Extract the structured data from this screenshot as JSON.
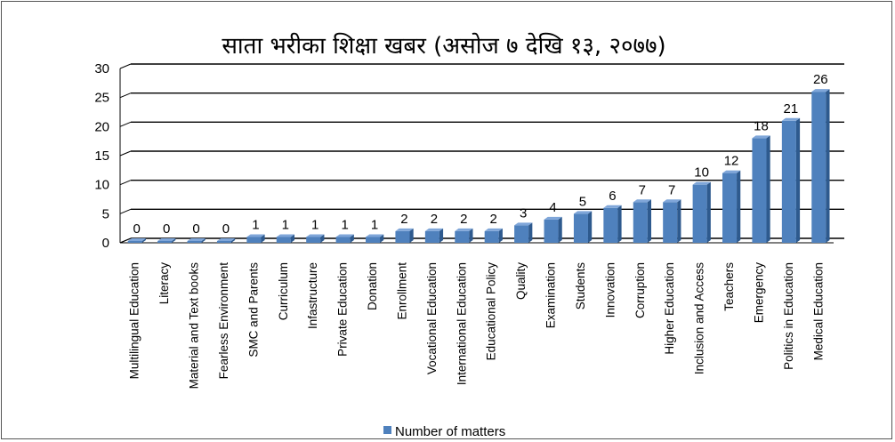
{
  "chart_data": {
    "type": "bar",
    "title": "साता भरीका शिक्षा खबर (असोज ७ देखि १३, २०७७)",
    "categories": [
      "Multilingual Education",
      "Literacy",
      "Material and Text books",
      "Fearless Environment",
      "SMC and Parents",
      "Curriculum",
      "Infastructure",
      "Private Education",
      "Donation",
      "Enrollment",
      "Vocational Education",
      "International Education",
      "Educational Policy",
      "Quality",
      "Examination",
      "Students",
      "Innovation",
      "Corruption",
      "Higher Education",
      "Inclusion and Access",
      "Teachers",
      "Emergency",
      "Politics in Education",
      "Medical Education"
    ],
    "series": [
      {
        "name": "Number of matters",
        "values": [
          0,
          0,
          0,
          0,
          1,
          1,
          1,
          1,
          1,
          2,
          2,
          2,
          2,
          3,
          4,
          5,
          6,
          7,
          7,
          10,
          12,
          18,
          21,
          26
        ]
      }
    ],
    "yticks": [
      "0",
      "5",
      "10",
      "15",
      "20",
      "25",
      "30"
    ],
    "ylim": [
      0,
      30
    ],
    "grid": true,
    "legend": "bottom",
    "colors": {
      "bar_front": "#4F81BD",
      "bar_side": "#2E5A8E",
      "bar_top": "#7FA6D9",
      "gridline": "#000000"
    }
  }
}
